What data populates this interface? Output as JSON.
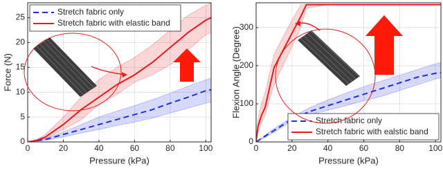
{
  "chart_data": [
    {
      "type": "line",
      "xlabel": "Pressure (kPa)",
      "ylabel": "Force (N)",
      "xlim": [
        0,
        103
      ],
      "ylim": [
        0,
        28
      ],
      "xticks": [
        0,
        20,
        40,
        60,
        80,
        100
      ],
      "yticks": [
        0,
        5,
        10,
        15,
        20,
        25
      ],
      "grid": true,
      "legend": "upper left",
      "series": [
        {
          "name": "Stretch fabric only",
          "color": "#1f2ee0",
          "dash": true,
          "x": [
            0,
            10,
            20,
            30,
            40,
            50,
            60,
            70,
            80,
            90,
            100,
            103
          ],
          "values": [
            0,
            0.5,
            1.5,
            2.5,
            3.5,
            4.5,
            5.5,
            6.5,
            7.8,
            9,
            10.3,
            10.5
          ],
          "band_high": [
            0,
            0.7,
            2,
            3.5,
            5,
            6.2,
            7.3,
            8.5,
            9.8,
            11.2,
            12.5,
            12.8
          ],
          "band_low": [
            0,
            0.3,
            1,
            1.8,
            2.5,
            3.3,
            4,
            4.8,
            5.8,
            6.8,
            7.8,
            8
          ]
        },
        {
          "name": "Stretch fabric with elastic band",
          "color": "#e8191c",
          "dash": false,
          "x": [
            0,
            5,
            10,
            20,
            30,
            40,
            50,
            60,
            70,
            80,
            90,
            100,
            103
          ],
          "values": [
            0,
            0.3,
            1,
            3.5,
            6.5,
            9,
            11.5,
            13.5,
            16,
            19,
            22,
            24.5,
            25
          ],
          "band_high": [
            0,
            0.5,
            1.5,
            5,
            9,
            12.5,
            15,
            17,
            19.5,
            22.5,
            25.5,
            27.5,
            28
          ],
          "band_low": [
            0,
            0.2,
            0.7,
            2.5,
            4.5,
            7.5,
            9.5,
            12,
            13.5,
            15.5,
            18.5,
            21.5,
            22
          ]
        }
      ]
    },
    {
      "type": "line",
      "xlabel": "Pressure (kPa)",
      "ylabel": "Flexion Angle (Degree)",
      "xlim": [
        0,
        103
      ],
      "ylim": [
        0,
        365
      ],
      "xticks": [
        0,
        20,
        40,
        60,
        80,
        100
      ],
      "yticks": [
        0,
        100,
        200,
        300
      ],
      "grid": true,
      "legend": "lower right",
      "series": [
        {
          "name": "Stretch fabric only",
          "color": "#1f2ee0",
          "dash": true,
          "x": [
            0,
            5,
            10,
            20,
            30,
            40,
            50,
            60,
            70,
            80,
            90,
            100,
            103
          ],
          "values": [
            0,
            15,
            30,
            60,
            80,
            95,
            110,
            125,
            140,
            155,
            170,
            180,
            182
          ],
          "band_high": [
            0,
            18,
            35,
            65,
            90,
            110,
            128,
            145,
            160,
            175,
            190,
            205,
            208
          ],
          "band_low": [
            0,
            12,
            25,
            55,
            72,
            83,
            95,
            108,
            120,
            135,
            150,
            165,
            168
          ]
        },
        {
          "name": "Stretch fabric with ealstic band",
          "color": "#e8191c",
          "dash": false,
          "x": [
            0,
            1,
            3,
            5,
            10,
            15,
            20,
            25,
            28,
            40,
            60,
            80,
            100,
            103
          ],
          "values": [
            0,
            40,
            70,
            90,
            195,
            240,
            285,
            330,
            360,
            360,
            360,
            360,
            360,
            360
          ],
          "band_high": [
            0,
            60,
            100,
            130,
            230,
            275,
            320,
            360,
            360,
            360,
            360,
            360,
            360,
            360
          ],
          "band_low": [
            0,
            25,
            50,
            70,
            150,
            200,
            250,
            300,
            350,
            360,
            360,
            360,
            360,
            360
          ]
        }
      ]
    }
  ]
}
